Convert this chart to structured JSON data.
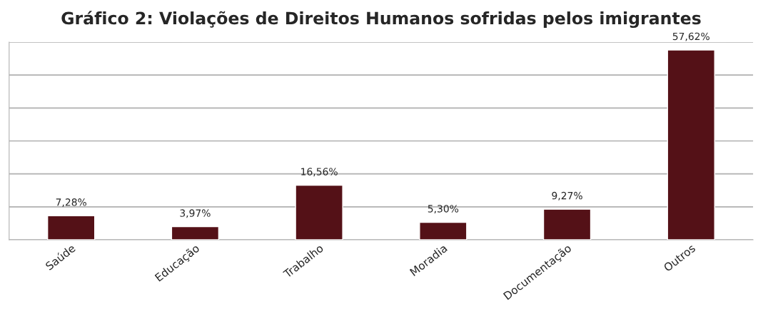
{
  "chart_data": {
    "type": "bar",
    "title": "Gráfico 2: Violações de Direitos Humanos sofridas pelos imigrantes",
    "categories": [
      "Saúde",
      "Educação",
      "Trabalho",
      "Moradia",
      "Documentação",
      "Outros"
    ],
    "values": [
      7.28,
      3.97,
      16.56,
      5.3,
      9.27,
      57.62
    ],
    "value_labels": [
      "7,28%",
      "3,97%",
      "16,56%",
      "5,30%",
      "9,27%",
      "57,62%"
    ],
    "color": "#541117",
    "ylim": [
      0,
      60
    ],
    "yticks": [
      {
        "value": 0,
        "label": null
      },
      {
        "value": 10,
        "label": null
      },
      {
        "value": 20,
        "label": null
      },
      {
        "value": 30,
        "label": null
      },
      {
        "value": 40,
        "label": null
      },
      {
        "value": 50,
        "label": null
      },
      {
        "value": 60,
        "label": null
      }
    ],
    "grid": "y",
    "tick_labels": "x"
  }
}
